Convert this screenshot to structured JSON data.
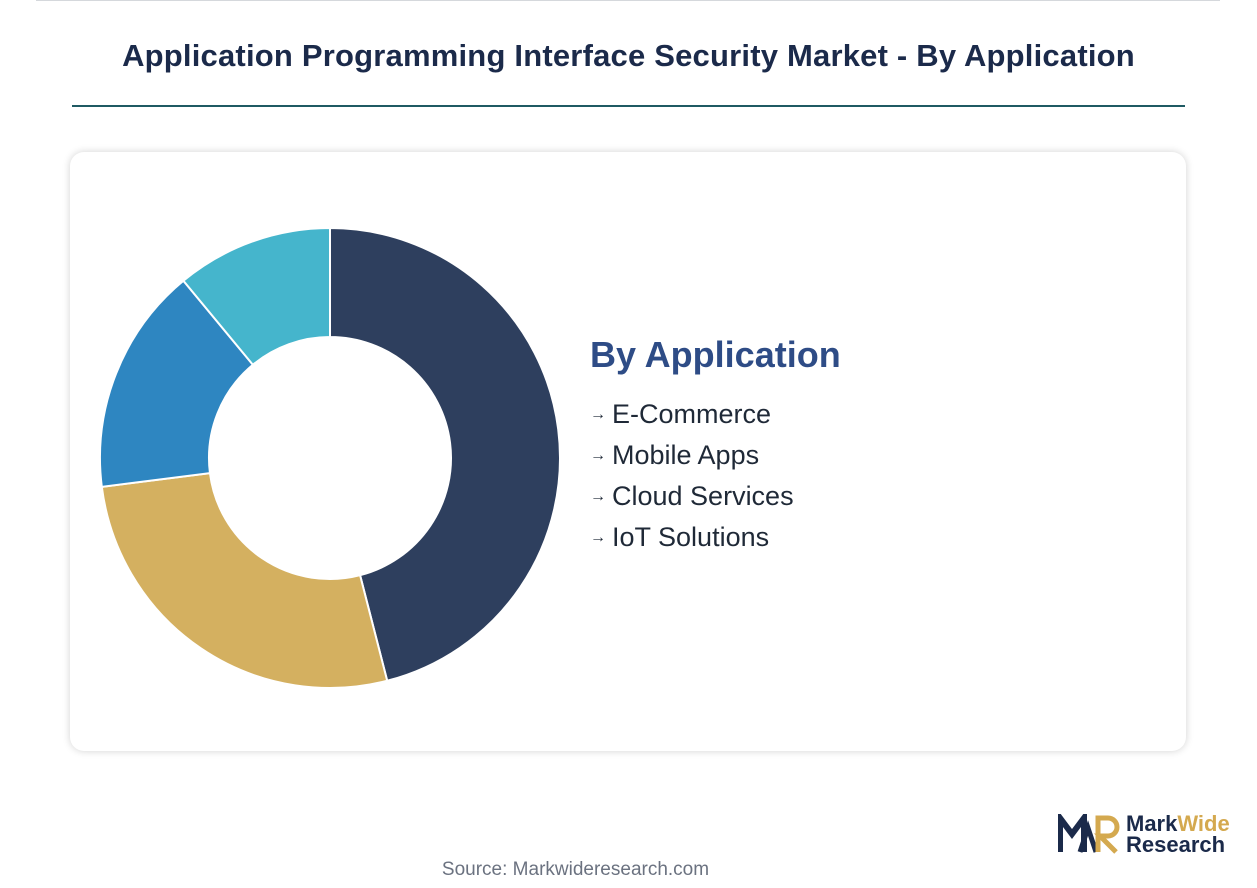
{
  "page": {
    "title": "Application Programming Interface Security Market - By Application",
    "source": "Source: Markwideresearch.com"
  },
  "legend": {
    "title": "By Application",
    "arrow": "→",
    "items": [
      "E-Commerce",
      "Mobile Apps",
      "Cloud Services",
      "IoT Solutions"
    ]
  },
  "logo": {
    "name_part1": "Mark",
    "name_part2": "Wide",
    "name_line2": "Research",
    "icon": "mwr-logo-icon",
    "colors": {
      "dark": "#1b2a4a",
      "gold": "#d4a94f"
    }
  },
  "chart_data": {
    "type": "pie",
    "style": "donut",
    "categories": [
      "E-Commerce",
      "Mobile Apps",
      "Cloud Services",
      "IoT Solutions"
    ],
    "values": [
      46,
      27,
      16,
      11
    ],
    "colors": [
      "#2e3f5e",
      "#d4b060",
      "#2e86c1",
      "#45b5cc"
    ],
    "legend_placement": "right"
  }
}
